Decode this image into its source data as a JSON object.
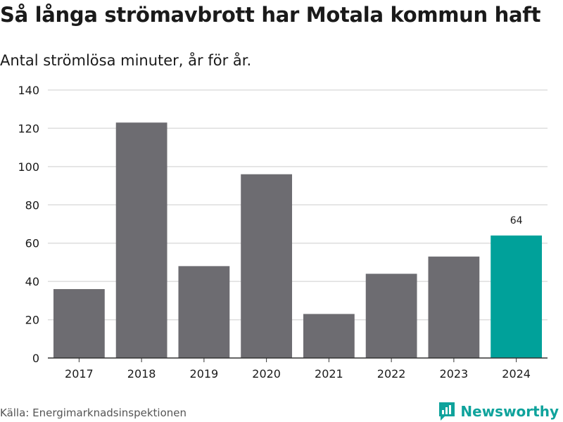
{
  "header": {
    "title": "Så långa strömavbrott har Motala kommun haft",
    "subtitle": "Antal strömlösa minuter, år för år."
  },
  "footer": {
    "source": "Källa: Energimarknadsinspektionen",
    "brand": "Newsworthy"
  },
  "colors": {
    "bar": "#6d6c71",
    "highlight": "#00a19a",
    "grid": "#dddddd",
    "axis": "#333333",
    "brand": "#0fa39c"
  },
  "chart_data": {
    "type": "bar",
    "title": "Så långa strömavbrott har Motala kommun haft",
    "subtitle": "Antal strömlösa minuter, år för år.",
    "xlabel": "",
    "ylabel": "",
    "categories": [
      "2017",
      "2018",
      "2019",
      "2020",
      "2021",
      "2022",
      "2023",
      "2024"
    ],
    "values": [
      36,
      123,
      48,
      96,
      23,
      44,
      53,
      64
    ],
    "highlight_index": 7,
    "data_labels": [
      {
        "index": 7,
        "text": "64"
      }
    ],
    "yticks": [
      0,
      20,
      40,
      60,
      80,
      100,
      120,
      140
    ],
    "ylim": [
      0,
      140
    ],
    "grid": true,
    "legend": "none"
  }
}
